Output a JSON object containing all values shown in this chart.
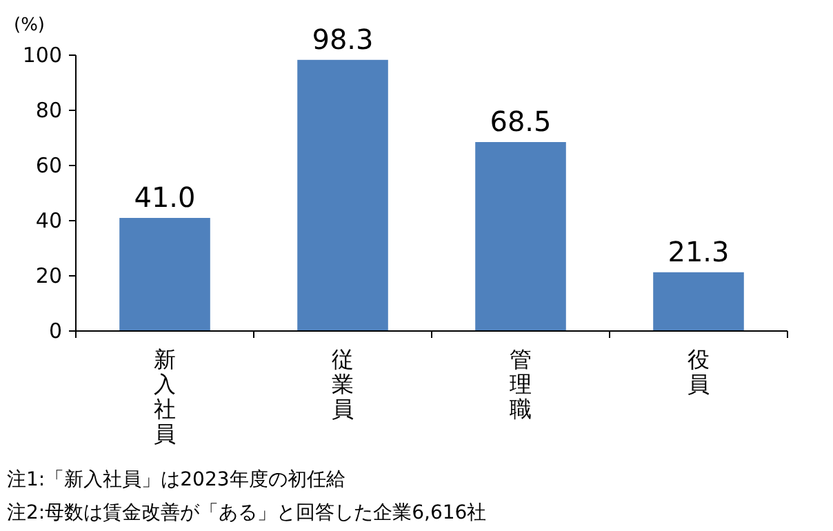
{
  "chart_data": {
    "type": "bar",
    "ylabel": "(%)",
    "categories": [
      "新入社員",
      "従業員",
      "管理職",
      "役員"
    ],
    "values": [
      41.0,
      98.3,
      68.5,
      21.3
    ],
    "value_labels": [
      "41.0",
      "98.3",
      "68.5",
      "21.3"
    ],
    "color": "#4f81bd",
    "ylim": [
      0,
      100
    ],
    "yticks": [
      0,
      20,
      40,
      60,
      80,
      100
    ],
    "annotations": [
      "注1:「新入社員」は2023年度の初任給",
      "注2:母数は賃金改善が「ある」と回答した企業6,616社"
    ]
  }
}
